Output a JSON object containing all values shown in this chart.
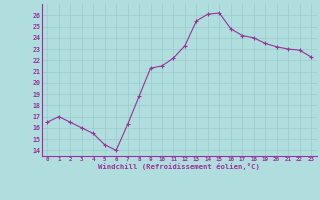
{
  "x": [
    0,
    1,
    2,
    3,
    4,
    5,
    6,
    7,
    8,
    9,
    10,
    11,
    12,
    13,
    14,
    15,
    16,
    17,
    18,
    19,
    20,
    21,
    22,
    23
  ],
  "y": [
    16.5,
    17.0,
    16.5,
    16.0,
    15.5,
    14.5,
    14.0,
    16.3,
    18.8,
    21.3,
    21.5,
    22.2,
    23.3,
    25.5,
    26.1,
    26.2,
    24.8,
    24.2,
    24.0,
    23.5,
    23.2,
    23.0,
    22.9,
    22.3
  ],
  "line_color": "#993399",
  "marker_color": "#993399",
  "bg_color": "#b0dddd",
  "grid_color": "#99cccc",
  "xlabel": "Windchill (Refroidissement éolien,°C)",
  "xlabel_color": "#993399",
  "tick_color": "#993399",
  "axis_color": "#993399",
  "ylim": [
    13.5,
    27
  ],
  "yticks": [
    14,
    15,
    16,
    17,
    18,
    19,
    20,
    21,
    22,
    23,
    24,
    25,
    26
  ],
  "xlim": [
    -0.5,
    23.5
  ],
  "xticks": [
    0,
    1,
    2,
    3,
    4,
    5,
    6,
    7,
    8,
    9,
    10,
    11,
    12,
    13,
    14,
    15,
    16,
    17,
    18,
    19,
    20,
    21,
    22,
    23
  ]
}
